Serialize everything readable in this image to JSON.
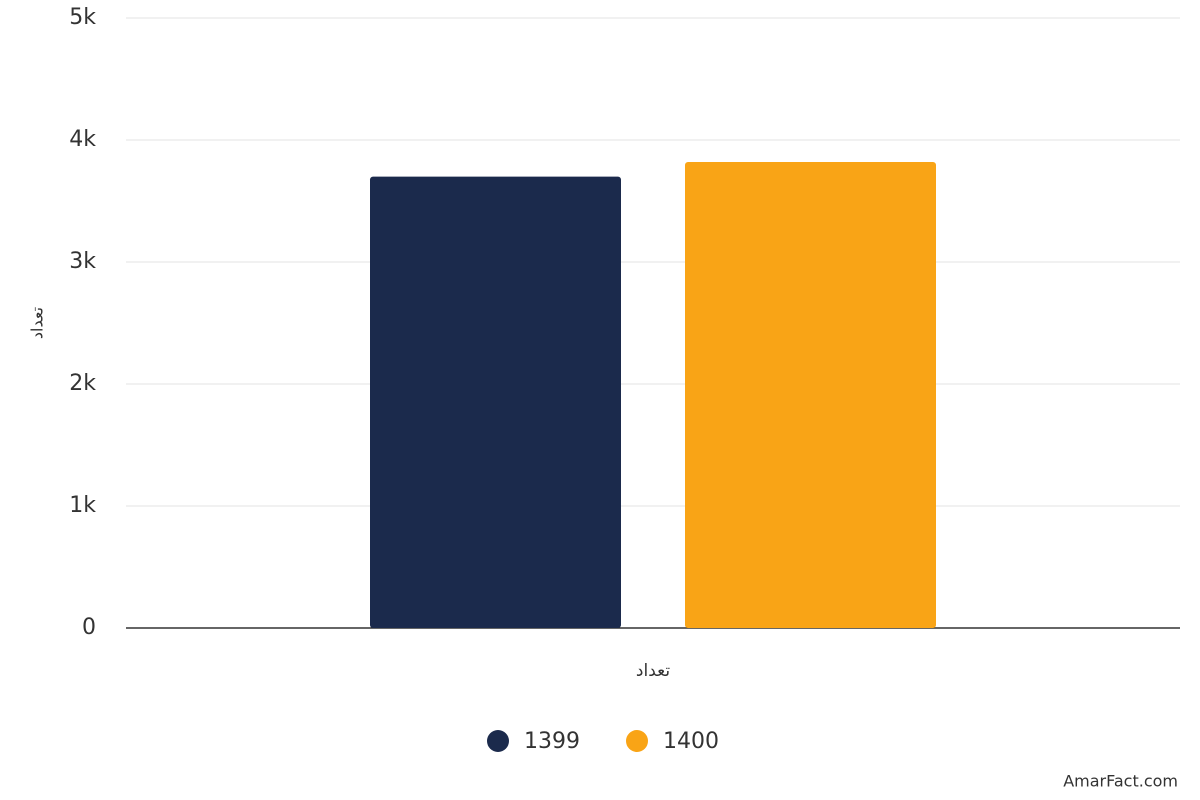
{
  "chart_data": {
    "type": "bar",
    "categories": [
      "تعداد"
    ],
    "x_label": "تعداد",
    "y_label": "تعداد",
    "series": [
      {
        "name": "1399",
        "color": "#1b2a4c",
        "values": [
          3700
        ]
      },
      {
        "name": "1400",
        "color": "#f9a416",
        "values": [
          3820
        ]
      }
    ],
    "ylim": [
      0,
      5000
    ],
    "yticks": [
      0,
      {
        "value": 1000,
        "label": "1k"
      },
      {
        "value": 2000,
        "label": "2k"
      },
      {
        "value": 3000,
        "label": "3k"
      },
      {
        "value": 4000,
        "label": "4k"
      },
      {
        "value": 5000,
        "label": "5k"
      }
    ],
    "grid": true,
    "legend": "bottom"
  },
  "credit": "AmarFact.com"
}
